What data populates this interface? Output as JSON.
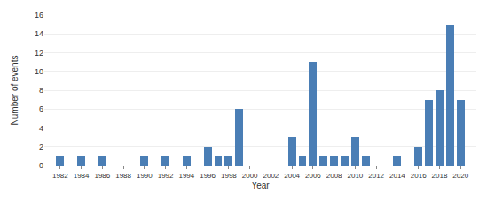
{
  "chart_data": {
    "type": "bar",
    "x": [
      1982,
      1983,
      1984,
      1985,
      1986,
      1987,
      1988,
      1989,
      1990,
      1991,
      1992,
      1993,
      1994,
      1995,
      1996,
      1997,
      1998,
      1999,
      2000,
      2001,
      2002,
      2003,
      2004,
      2005,
      2006,
      2007,
      2008,
      2009,
      2010,
      2011,
      2012,
      2013,
      2014,
      2015,
      2016,
      2017,
      2018,
      2019,
      2020
    ],
    "values": [
      1,
      0,
      1,
      0,
      1,
      0,
      0,
      0,
      1,
      0,
      1,
      0,
      1,
      0,
      2,
      1,
      1,
      6,
      0,
      0,
      0,
      0,
      3,
      1,
      11,
      1,
      1,
      1,
      3,
      1,
      0,
      0,
      1,
      0,
      2,
      7,
      8,
      15,
      7
    ],
    "color": "#4a7eb5",
    "xlabel": "Year",
    "ylabel": "Number of events",
    "xlim": [
      1980.5,
      2021.5
    ],
    "xticks": [
      1982,
      1984,
      1986,
      1988,
      1990,
      1992,
      1994,
      1996,
      1998,
      2000,
      2002,
      2004,
      2006,
      2008,
      2010,
      2012,
      2014,
      2016,
      2018,
      2020
    ],
    "ylim": [
      0,
      16
    ],
    "yticks": [
      0,
      2,
      4,
      6,
      8,
      10,
      12,
      14,
      16
    ],
    "grid": true
  }
}
